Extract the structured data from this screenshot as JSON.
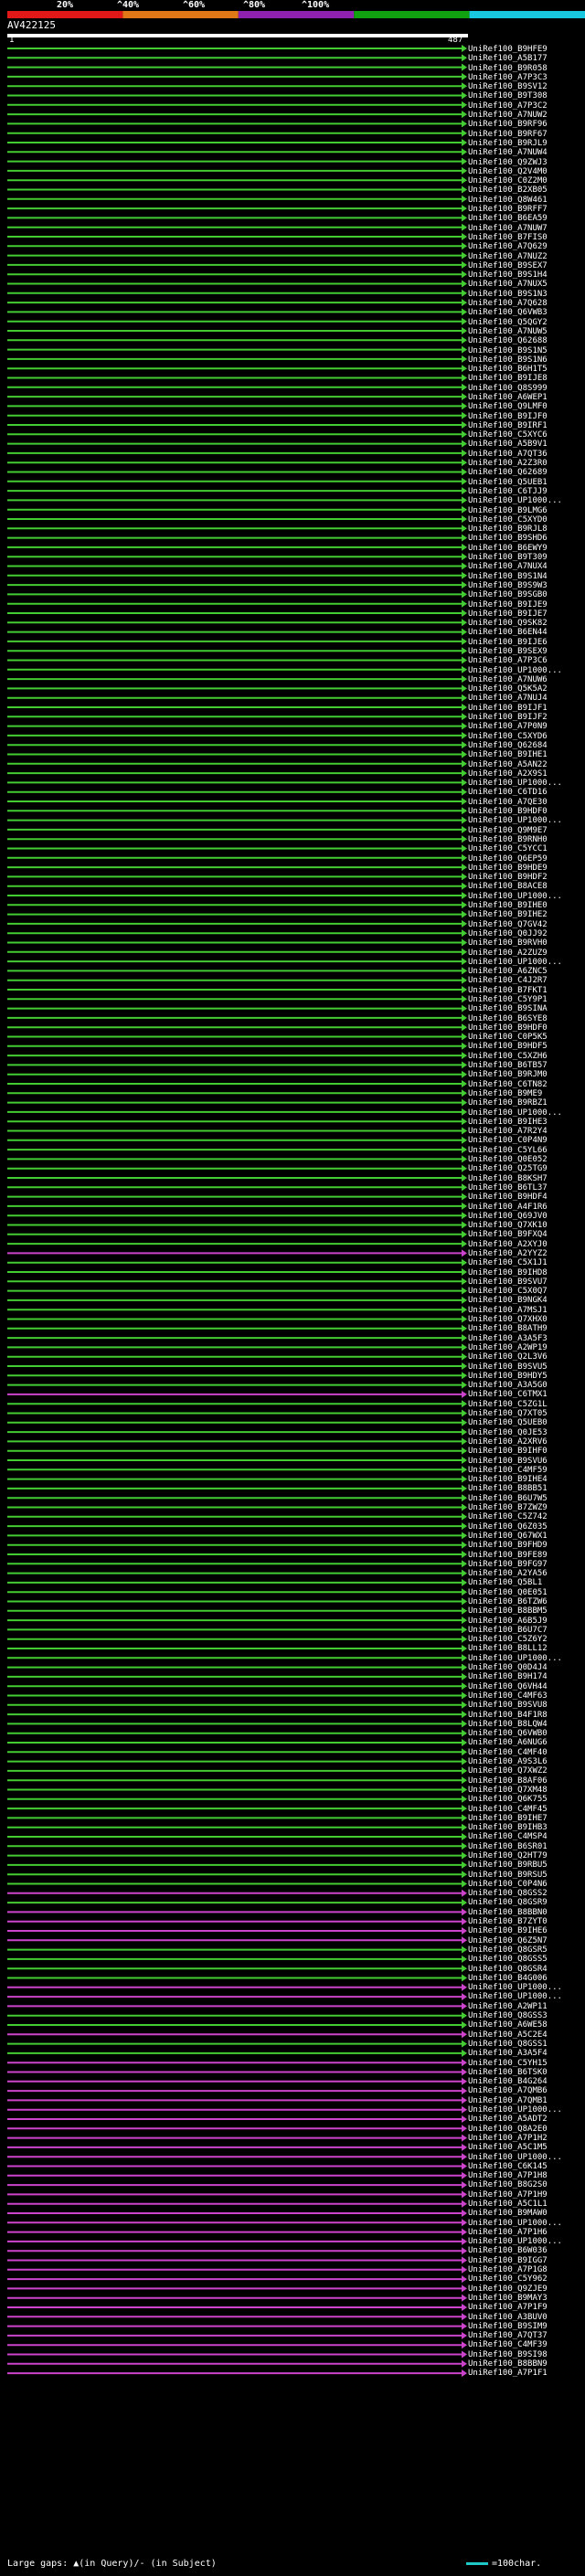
{
  "scale": {
    "labels": [
      "20%",
      "^40%",
      "^60%",
      "^80%",
      "^100%"
    ],
    "colors": [
      "#e01818",
      "#e07818",
      "#9020b0",
      "#10a010",
      "#18c8e0"
    ]
  },
  "query": {
    "id": "AV422125",
    "start": "1",
    "end": "487"
  },
  "colors": {
    "green": "#44cc33",
    "magenta": "#cc44cc",
    "grey": "#444444",
    "query_bar": "#ffffff"
  },
  "hits": [
    {
      "label": "UniRef100_B9HFE9",
      "color": "green"
    },
    {
      "label": "UniRef100_A5B177",
      "color": "green"
    },
    {
      "label": "UniRef100_B9R058",
      "color": "green"
    },
    {
      "label": "UniRef100_A7P3C3",
      "color": "green"
    },
    {
      "label": "UniRef100_B9SV12",
      "color": "green"
    },
    {
      "label": "UniRef100_B9T308",
      "color": "green"
    },
    {
      "label": "UniRef100_A7P3C2",
      "color": "green"
    },
    {
      "label": "UniRef100_A7NUW2",
      "color": "green"
    },
    {
      "label": "UniRef100_B9RF96",
      "color": "green"
    },
    {
      "label": "UniRef100_B9RF67",
      "color": "green"
    },
    {
      "label": "UniRef100_B9RJL9",
      "color": "green"
    },
    {
      "label": "UniRef100_A7NUW4",
      "color": "green"
    },
    {
      "label": "UniRef100_Q9ZWJ3",
      "color": "green"
    },
    {
      "label": "UniRef100_Q2V4M0",
      "color": "green"
    },
    {
      "label": "UniRef100_C0Z2M0",
      "color": "green"
    },
    {
      "label": "UniRef100_B2XB05",
      "color": "green"
    },
    {
      "label": "UniRef100_Q8W461",
      "color": "green"
    },
    {
      "label": "UniRef100_B9RFF7",
      "color": "green"
    },
    {
      "label": "UniRef100_B6EA59",
      "color": "green"
    },
    {
      "label": "UniRef100_A7NUW7",
      "color": "green"
    },
    {
      "label": "UniRef100_B7FIS0",
      "color": "green"
    },
    {
      "label": "UniRef100_A7Q629",
      "color": "green"
    },
    {
      "label": "UniRef100_A7NUZ2",
      "color": "green"
    },
    {
      "label": "UniRef100_B9SEX7",
      "color": "green"
    },
    {
      "label": "UniRef100_B9S1H4",
      "color": "green"
    },
    {
      "label": "UniRef100_A7NUX5",
      "color": "green"
    },
    {
      "label": "UniRef100_B9S1N3",
      "color": "green"
    },
    {
      "label": "UniRef100_A7Q628",
      "color": "green"
    },
    {
      "label": "UniRef100_Q6VWB3",
      "color": "green"
    },
    {
      "label": "UniRef100_Q5QGY2",
      "color": "green"
    },
    {
      "label": "UniRef100_A7NUW5",
      "color": "green"
    },
    {
      "label": "UniRef100_Q62688",
      "color": "green"
    },
    {
      "label": "UniRef100_B9S1N5",
      "color": "green"
    },
    {
      "label": "UniRef100_B9S1N6",
      "color": "green"
    },
    {
      "label": "UniRef100_B6H1T5",
      "color": "green"
    },
    {
      "label": "UniRef100_B9IJE8",
      "color": "green"
    },
    {
      "label": "UniRef100_Q8S999",
      "color": "green"
    },
    {
      "label": "UniRef100_A6WEP1",
      "color": "green"
    },
    {
      "label": "UniRef100_Q9LMF0",
      "color": "green"
    },
    {
      "label": "UniRef100_B9IJF0",
      "color": "green"
    },
    {
      "label": "UniRef100_B9IRF1",
      "color": "green"
    },
    {
      "label": "UniRef100_C5XYC6",
      "color": "green"
    },
    {
      "label": "UniRef100_A5B9V1",
      "color": "green"
    },
    {
      "label": "UniRef100_A7QT36",
      "color": "green"
    },
    {
      "label": "UniRef100_A2Z3R0",
      "color": "green"
    },
    {
      "label": "UniRef100_Q62689",
      "color": "green"
    },
    {
      "label": "UniRef100_Q5UEB1",
      "color": "green"
    },
    {
      "label": "UniRef100_C6TJJ9",
      "color": "green"
    },
    {
      "label": "UniRef100_UP1000...",
      "color": "green"
    },
    {
      "label": "UniRef100_B9LMG6",
      "color": "green"
    },
    {
      "label": "UniRef100_C5XYD0",
      "color": "green"
    },
    {
      "label": "UniRef100_B9RJL8",
      "color": "green"
    },
    {
      "label": "UniRef100_B9SHD6",
      "color": "green"
    },
    {
      "label": "UniRef100_B6EWY9",
      "color": "green"
    },
    {
      "label": "UniRef100_B9T309",
      "color": "green"
    },
    {
      "label": "UniRef100_A7NUX4",
      "color": "green"
    },
    {
      "label": "UniRef100_B9S1N4",
      "color": "green"
    },
    {
      "label": "UniRef100_B9S9W3",
      "color": "green"
    },
    {
      "label": "UniRef100_B9SGB0",
      "color": "green"
    },
    {
      "label": "UniRef100_B9IJE9",
      "color": "green"
    },
    {
      "label": "UniRef100_B9IJE7",
      "color": "green"
    },
    {
      "label": "UniRef100_Q9SK82",
      "color": "green"
    },
    {
      "label": "UniRef100_B6EN44",
      "color": "green"
    },
    {
      "label": "UniRef100_B9IJE6",
      "color": "green"
    },
    {
      "label": "UniRef100_B9SEX9",
      "color": "green"
    },
    {
      "label": "UniRef100_A7P3C6",
      "color": "green"
    },
    {
      "label": "UniRef100_UP1000...",
      "color": "green"
    },
    {
      "label": "UniRef100_A7NUW6",
      "color": "green"
    },
    {
      "label": "UniRef100_Q5K5A2",
      "color": "green"
    },
    {
      "label": "UniRef100_A7NUJ4",
      "color": "green"
    },
    {
      "label": "UniRef100_B9IJF1",
      "color": "green"
    },
    {
      "label": "UniRef100_B9IJF2",
      "color": "green"
    },
    {
      "label": "UniRef100_A7P0N9",
      "color": "green"
    },
    {
      "label": "UniRef100_C5XYD6",
      "color": "green"
    },
    {
      "label": "UniRef100_Q62684",
      "color": "green"
    },
    {
      "label": "UniRef100_B9IHE1",
      "color": "green"
    },
    {
      "label": "UniRef100_A5AN22",
      "color": "green"
    },
    {
      "label": "UniRef100_A2X9S1",
      "color": "green"
    },
    {
      "label": "UniRef100_UP1000...",
      "color": "green"
    },
    {
      "label": "UniRef100_C6TD16",
      "color": "green"
    },
    {
      "label": "UniRef100_A7QE30",
      "color": "green"
    },
    {
      "label": "UniRef100_B9HDF0",
      "color": "green"
    },
    {
      "label": "UniRef100_UP1000...",
      "color": "green"
    },
    {
      "label": "UniRef100_Q9M9E7",
      "color": "green"
    },
    {
      "label": "UniRef100_B9RNH0",
      "color": "green"
    },
    {
      "label": "UniRef100_C5YCC1",
      "color": "green"
    },
    {
      "label": "UniRef100_Q6EP59",
      "color": "green"
    },
    {
      "label": "UniRef100_B9HDE9",
      "color": "green"
    },
    {
      "label": "UniRef100_B9HDF2",
      "color": "green"
    },
    {
      "label": "UniRef100_B8ACE8",
      "color": "green"
    },
    {
      "label": "UniRef100_UP1000...",
      "color": "green"
    },
    {
      "label": "UniRef100_B9IHE0",
      "color": "green"
    },
    {
      "label": "UniRef100_B9IHE2",
      "color": "green"
    },
    {
      "label": "UniRef100_Q7GV42",
      "color": "green"
    },
    {
      "label": "UniRef100_Q0JJ92",
      "color": "green"
    },
    {
      "label": "UniRef100_B9RVH0",
      "color": "green"
    },
    {
      "label": "UniRef100_A2ZUZ9",
      "color": "green"
    },
    {
      "label": "UniRef100_UP1000...",
      "color": "green"
    },
    {
      "label": "UniRef100_A6ZNC5",
      "color": "green"
    },
    {
      "label": "UniRef100_C4J2R7",
      "color": "green"
    },
    {
      "label": "UniRef100_B7FKT1",
      "color": "green"
    },
    {
      "label": "UniRef100_C5Y9P1",
      "color": "green"
    },
    {
      "label": "UniRef100_B9SINA",
      "color": "green"
    },
    {
      "label": "UniRef100_B6SYE8",
      "color": "green"
    },
    {
      "label": "UniRef100_B9HDF0",
      "color": "green"
    },
    {
      "label": "UniRef100_C0P5K5",
      "color": "green"
    },
    {
      "label": "UniRef100_B9HDF5",
      "color": "green"
    },
    {
      "label": "UniRef100_C5XZH6",
      "color": "green"
    },
    {
      "label": "UniRef100_B6TB57",
      "color": "green"
    },
    {
      "label": "UniRef100_B9RJM0",
      "color": "green"
    },
    {
      "label": "UniRef100_C6TN82",
      "color": "green"
    },
    {
      "label": "UniRef100_B9ME9",
      "color": "green"
    },
    {
      "label": "UniRef100_B9RBZ1",
      "color": "green"
    },
    {
      "label": "UniRef100_UP1000...",
      "color": "green"
    },
    {
      "label": "UniRef100_B9IHE3",
      "color": "green"
    },
    {
      "label": "UniRef100_A7R2Y4",
      "color": "green"
    },
    {
      "label": "UniRef100_C0P4N9",
      "color": "green"
    },
    {
      "label": "UniRef100_C5YL66",
      "color": "green"
    },
    {
      "label": "UniRef100_Q0E052",
      "color": "green"
    },
    {
      "label": "UniRef100_Q25TG9",
      "color": "green"
    },
    {
      "label": "UniRef100_B8KSH7",
      "color": "green"
    },
    {
      "label": "UniRef100_B6TL37",
      "color": "green"
    },
    {
      "label": "UniRef100_B9HDF4",
      "color": "green"
    },
    {
      "label": "UniRef100_A4F1R6",
      "color": "green"
    },
    {
      "label": "UniRef100_Q69JV0",
      "color": "green"
    },
    {
      "label": "UniRef100_Q7XK10",
      "color": "green"
    },
    {
      "label": "UniRef100_B9FXQ4",
      "color": "green"
    },
    {
      "label": "UniRef100_A2XYJ0",
      "color": "green"
    },
    {
      "label": "UniRef100_A2YYZ2",
      "color": "magenta"
    },
    {
      "label": "UniRef100_C5X1J1",
      "color": "green"
    },
    {
      "label": "UniRef100_B9IHD8",
      "color": "green"
    },
    {
      "label": "UniRef100_B9SVU7",
      "color": "green"
    },
    {
      "label": "UniRef100_C5X0Q7",
      "color": "green"
    },
    {
      "label": "UniRef100_B9NGK4",
      "color": "green"
    },
    {
      "label": "UniRef100_A7MSJ1",
      "color": "green"
    },
    {
      "label": "UniRef100_Q7XHX0",
      "color": "green"
    },
    {
      "label": "UniRef100_B8ATH9",
      "color": "green"
    },
    {
      "label": "UniRef100_A3A5F3",
      "color": "green"
    },
    {
      "label": "UniRef100_A2WP19",
      "color": "green"
    },
    {
      "label": "UniRef100_Q2L3V6",
      "color": "green"
    },
    {
      "label": "UniRef100_B9SVU5",
      "color": "green"
    },
    {
      "label": "UniRef100_B9HDY5",
      "color": "green"
    },
    {
      "label": "UniRef100_A3A5G0",
      "color": "green"
    },
    {
      "label": "UniRef100_C6TMX1",
      "color": "magenta"
    },
    {
      "label": "UniRef100_C5ZG1L",
      "color": "green"
    },
    {
      "label": "UniRef100_Q7XT05",
      "color": "green"
    },
    {
      "label": "UniRef100_Q5UEB0",
      "color": "green"
    },
    {
      "label": "UniRef100_Q0JE53",
      "color": "green"
    },
    {
      "label": "UniRef100_A2XRV6",
      "color": "green"
    },
    {
      "label": "UniRef100_B9IHF0",
      "color": "green"
    },
    {
      "label": "UniRef100_B9SVU6",
      "color": "green"
    },
    {
      "label": "UniRef100_C4MF59",
      "color": "green"
    },
    {
      "label": "UniRef100_B9IHE4",
      "color": "green"
    },
    {
      "label": "UniRef100_B8BB51",
      "color": "green"
    },
    {
      "label": "UniRef100_B6U7W5",
      "color": "green"
    },
    {
      "label": "UniRef100_B7ZWZ9",
      "color": "green"
    },
    {
      "label": "UniRef100_C5Z742",
      "color": "green"
    },
    {
      "label": "UniRef100_Q6Z035",
      "color": "green"
    },
    {
      "label": "UniRef100_Q67WX1",
      "color": "green"
    },
    {
      "label": "UniRef100_B9FHD9",
      "color": "green"
    },
    {
      "label": "UniRef100_B9FE89",
      "color": "green"
    },
    {
      "label": "UniRef100_B9FG97",
      "color": "green"
    },
    {
      "label": "UniRef100_A2YA56",
      "color": "green"
    },
    {
      "label": "UniRef100_Q5BL1",
      "color": "green"
    },
    {
      "label": "UniRef100_Q0E051",
      "color": "green"
    },
    {
      "label": "UniRef100_B6TZW6",
      "color": "green"
    },
    {
      "label": "UniRef100_B8BBM5",
      "color": "green"
    },
    {
      "label": "UniRef100_A6B5J9",
      "color": "green"
    },
    {
      "label": "UniRef100_B6U7C7",
      "color": "green"
    },
    {
      "label": "UniRef100_C5Z6Y2",
      "color": "green"
    },
    {
      "label": "UniRef100_B8LL12",
      "color": "green"
    },
    {
      "label": "UniRef100_UP1000...",
      "color": "green"
    },
    {
      "label": "UniRef100_Q0D4J4",
      "color": "green"
    },
    {
      "label": "UniRef100_B9H174",
      "color": "green"
    },
    {
      "label": "UniRef100_Q6VH44",
      "color": "green"
    },
    {
      "label": "UniRef100_C4MF63",
      "color": "green"
    },
    {
      "label": "UniRef100_B9SVU8",
      "color": "green"
    },
    {
      "label": "UniRef100_B4F1R8",
      "color": "green"
    },
    {
      "label": "UniRef100_B8LQW4",
      "color": "green"
    },
    {
      "label": "UniRef100_Q6VWB0",
      "color": "green"
    },
    {
      "label": "UniRef100_A6NUG6",
      "color": "green"
    },
    {
      "label": "UniRef100_C4MF40",
      "color": "green"
    },
    {
      "label": "UniRef100_A9S3L6",
      "color": "green"
    },
    {
      "label": "UniRef100_Q7XWZ2",
      "color": "green"
    },
    {
      "label": "UniRef100_B8AF06",
      "color": "green"
    },
    {
      "label": "UniRef100_Q7XM48",
      "color": "green"
    },
    {
      "label": "UniRef100_Q6K755",
      "color": "green"
    },
    {
      "label": "UniRef100_C4MF45",
      "color": "green"
    },
    {
      "label": "UniRef100_B9IHE7",
      "color": "green"
    },
    {
      "label": "UniRef100_B9IHB3",
      "color": "green"
    },
    {
      "label": "UniRef100_C4MSP4",
      "color": "green"
    },
    {
      "label": "UniRef100_B6SR01",
      "color": "green"
    },
    {
      "label": "UniRef100_Q2HT79",
      "color": "green"
    },
    {
      "label": "UniRef100_B9RBU5",
      "color": "green"
    },
    {
      "label": "UniRef100_B9RSU5",
      "color": "green"
    },
    {
      "label": "UniRef100_C0P4N6",
      "color": "green"
    },
    {
      "label": "UniRef100_Q8GSS2",
      "color": "magenta"
    },
    {
      "label": "UniRef100_Q8GSR9",
      "color": "green"
    },
    {
      "label": "UniRef100_B8BBN0",
      "color": "magenta"
    },
    {
      "label": "UniRef100_B7ZYT0",
      "color": "magenta"
    },
    {
      "label": "UniRef100_B9IHE6",
      "color": "magenta"
    },
    {
      "label": "UniRef100_Q6Z5N7",
      "color": "magenta"
    },
    {
      "label": "UniRef100_Q8GSR5",
      "color": "green"
    },
    {
      "label": "UniRef100_Q8GSS5",
      "color": "green"
    },
    {
      "label": "UniRef100_Q8GSR4",
      "color": "green"
    },
    {
      "label": "UniRef100_B4G006",
      "color": "green"
    },
    {
      "label": "UniRef100_UP1000...",
      "color": "magenta"
    },
    {
      "label": "UniRef100_UP1000...",
      "color": "magenta"
    },
    {
      "label": "UniRef100_A2WP11",
      "color": "magenta"
    },
    {
      "label": "UniRef100_Q8GSS3",
      "color": "green"
    },
    {
      "label": "UniRef100_A6WE58",
      "color": "green"
    },
    {
      "label": "UniRef100_A5C2E4",
      "color": "magenta"
    },
    {
      "label": "UniRef100_Q8GSS1",
      "color": "green"
    },
    {
      "label": "UniRef100_A3A5F4",
      "color": "green"
    },
    {
      "label": "UniRef100_C5YH15",
      "color": "magenta"
    },
    {
      "label": "UniRef100_B6TSK0",
      "color": "magenta"
    },
    {
      "label": "UniRef100_B4G264",
      "color": "magenta"
    },
    {
      "label": "UniRef100_A7QMB6",
      "color": "magenta"
    },
    {
      "label": "UniRef100_A7QMB1",
      "color": "magenta"
    },
    {
      "label": "UniRef100_UP1000...",
      "color": "magenta"
    },
    {
      "label": "UniRef100_A5ADT2",
      "color": "magenta"
    },
    {
      "label": "UniRef100_Q8A2E0",
      "color": "magenta"
    },
    {
      "label": "UniRef100_A7P1H2",
      "color": "magenta"
    },
    {
      "label": "UniRef100_A5C1M5",
      "color": "magenta"
    },
    {
      "label": "UniRef100_UP1000...",
      "color": "magenta"
    },
    {
      "label": "UniRef100_C6K145",
      "color": "magenta"
    },
    {
      "label": "UniRef100_A7P1H8",
      "color": "magenta"
    },
    {
      "label": "UniRef100_B8G2S0",
      "color": "magenta"
    },
    {
      "label": "UniRef100_A7P1H9",
      "color": "magenta"
    },
    {
      "label": "UniRef100_A5C1L1",
      "color": "magenta"
    },
    {
      "label": "UniRef100_B9MAW0",
      "color": "magenta"
    },
    {
      "label": "UniRef100_UP1000...",
      "color": "magenta"
    },
    {
      "label": "UniRef100_A7P1H6",
      "color": "magenta"
    },
    {
      "label": "UniRef100_UP1000...",
      "color": "magenta"
    },
    {
      "label": "UniRef100_B6W036",
      "color": "magenta"
    },
    {
      "label": "UniRef100_B9IGG7",
      "color": "magenta"
    },
    {
      "label": "UniRef100_A7P1G8",
      "color": "magenta"
    },
    {
      "label": "UniRef100_C5Y962",
      "color": "magenta"
    },
    {
      "label": "UniRef100_Q9ZJE9",
      "color": "magenta"
    },
    {
      "label": "UniRef100_B9MAY3",
      "color": "magenta"
    },
    {
      "label": "UniRef100_A7P1F9",
      "color": "magenta"
    },
    {
      "label": "UniRef100_A3BUV0",
      "color": "magenta"
    },
    {
      "label": "UniRef100_B9SIM9",
      "color": "magenta"
    },
    {
      "label": "UniRef100_A7QT37",
      "color": "magenta"
    },
    {
      "label": "UniRef100_C4MF39",
      "color": "magenta"
    },
    {
      "label": "UniRef100_B9SI98",
      "color": "magenta"
    },
    {
      "label": "UniRef100_B8BBN9",
      "color": "magenta"
    },
    {
      "label": "UniRef100_A7P1F1",
      "color": "magenta"
    }
  ],
  "footer": {
    "gaps_text": "Large gaps: ▲(in Query)/- (in Subject)",
    "scale_text": "=100char."
  }
}
